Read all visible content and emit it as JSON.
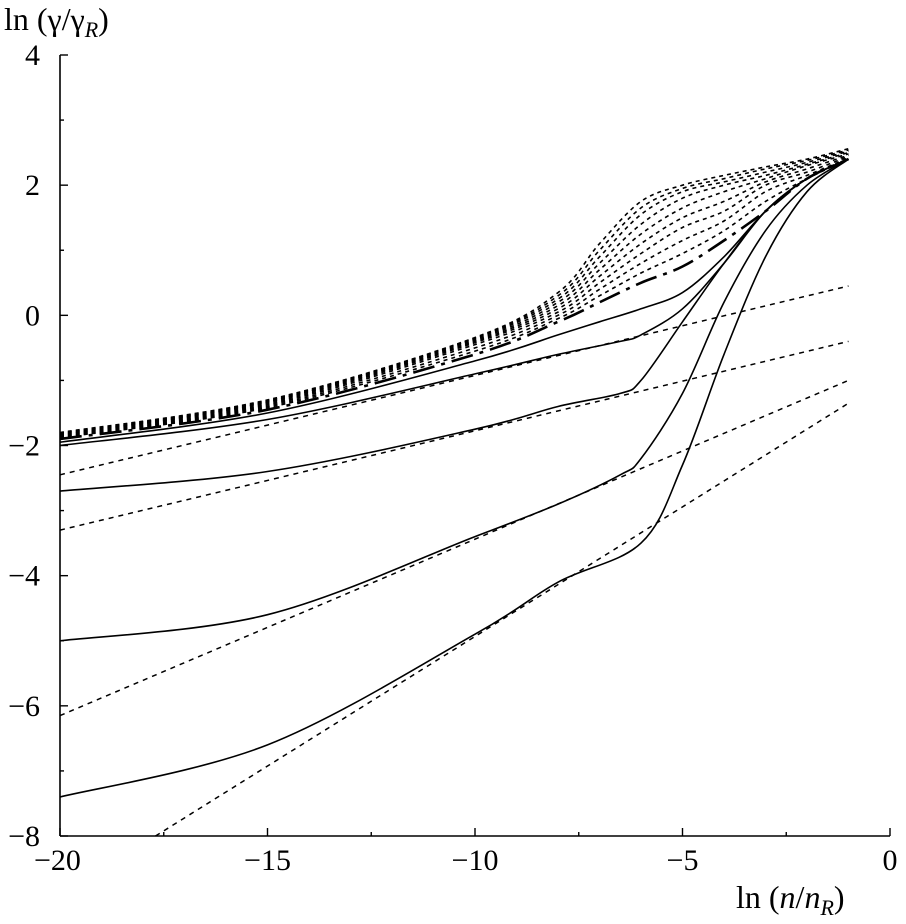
{
  "chart_data": {
    "type": "line",
    "xlabel": {
      "prefix": "ln (",
      "var1": "n",
      "sep": "/",
      "var2": "n",
      "sub": "R",
      "suffix": ")"
    },
    "ylabel": {
      "prefix": "ln (",
      "var1": "γ",
      "sep": "/",
      "var2": "γ",
      "sub": "R",
      "suffix": ")"
    },
    "xlim": [
      -20,
      0
    ],
    "ylim": [
      -8,
      4
    ],
    "x_ticks": [
      -20,
      -15,
      -10,
      -5,
      0
    ],
    "x_tick_labels": [
      "−20",
      "−15",
      "−10",
      "−5",
      "0"
    ],
    "y_ticks": [
      -8,
      -6,
      -4,
      -2,
      0,
      2,
      4
    ],
    "y_tick_labels": [
      "−8",
      "−6",
      "−4",
      "−2",
      "0",
      "2",
      "4"
    ],
    "grid": false,
    "legend": "none",
    "series": [
      {
        "style": "solid",
        "x": [
          -20,
          -15,
          -10,
          -8,
          -6,
          -5,
          -4,
          -3,
          -2,
          -1
        ],
        "y": [
          -7.4,
          -6.6,
          -4.9,
          -4.1,
          -3.5,
          -2.3,
          -0.6,
          0.9,
          1.9,
          2.4
        ]
      },
      {
        "style": "solid",
        "x": [
          -20,
          -15,
          -10,
          -8,
          -6.5,
          -6,
          -5,
          -4,
          -3,
          -2,
          -1
        ],
        "y": [
          -5.0,
          -4.6,
          -3.4,
          -2.9,
          -2.45,
          -2.2,
          -1.2,
          0.2,
          1.3,
          2.0,
          2.4
        ]
      },
      {
        "style": "solid",
        "x": [
          -20,
          -15,
          -10,
          -8,
          -6.5,
          -6,
          -5,
          -4,
          -3,
          -2,
          -1
        ],
        "y": [
          -2.7,
          -2.4,
          -1.75,
          -1.4,
          -1.2,
          -1.0,
          -0.1,
          0.8,
          1.6,
          2.1,
          2.4
        ]
      },
      {
        "style": "solid",
        "x": [
          -20,
          -15,
          -10,
          -8,
          -6.5,
          -6,
          -5,
          -4,
          -3,
          -2,
          -1
        ],
        "y": [
          -2.0,
          -1.6,
          -0.9,
          -0.6,
          -0.4,
          -0.3,
          0.1,
          0.8,
          1.6,
          2.1,
          2.4
        ]
      },
      {
        "style": "solid",
        "x": [
          -20,
          -15,
          -10,
          -8,
          -7,
          -6,
          -5,
          -4,
          -3,
          -2,
          -1
        ],
        "y": [
          -1.95,
          -1.5,
          -0.7,
          -0.3,
          -0.1,
          0.1,
          0.35,
          0.9,
          1.6,
          2.1,
          2.4
        ]
      },
      {
        "style": "dash-dot",
        "x": [
          -20,
          -15,
          -10,
          -8,
          -7,
          -6,
          -5,
          -4,
          -3,
          -2,
          -1
        ],
        "y": [
          -1.9,
          -1.45,
          -0.6,
          -0.1,
          0.2,
          0.5,
          0.75,
          1.15,
          1.6,
          2.1,
          2.4
        ]
      },
      {
        "style": "dotted",
        "x": [
          -20,
          -15,
          -10,
          -8,
          -7,
          -6,
          -5,
          -4,
          -3,
          -2,
          -1
        ],
        "y": [
          -1.88,
          -1.42,
          -0.55,
          -0.05,
          0.3,
          0.65,
          0.95,
          1.3,
          1.75,
          2.1,
          2.4
        ]
      },
      {
        "style": "dotted",
        "x": [
          -20,
          -15,
          -10,
          -8,
          -7,
          -6,
          -5,
          -4,
          -3,
          -2,
          -1
        ],
        "y": [
          -1.87,
          -1.4,
          -0.5,
          0.0,
          0.4,
          0.8,
          1.15,
          1.45,
          1.9,
          2.15,
          2.42
        ]
      },
      {
        "style": "dotted",
        "x": [
          -20,
          -15,
          -10,
          -8,
          -7,
          -6,
          -5,
          -4,
          -3,
          -2,
          -1
        ],
        "y": [
          -1.86,
          -1.38,
          -0.45,
          0.05,
          0.5,
          0.95,
          1.35,
          1.6,
          2.0,
          2.2,
          2.44
        ]
      },
      {
        "style": "dotted",
        "x": [
          -20,
          -15,
          -10,
          -8,
          -7,
          -6,
          -5,
          -4,
          -3,
          -2,
          -1
        ],
        "y": [
          -1.85,
          -1.36,
          -0.42,
          0.1,
          0.6,
          1.1,
          1.5,
          1.75,
          2.05,
          2.25,
          2.46
        ]
      },
      {
        "style": "dotted",
        "x": [
          -20,
          -15,
          -10,
          -8,
          -7,
          -6,
          -5,
          -4,
          -3,
          -2,
          -1
        ],
        "y": [
          -1.84,
          -1.34,
          -0.4,
          0.15,
          0.7,
          1.25,
          1.65,
          1.9,
          2.1,
          2.3,
          2.48
        ]
      },
      {
        "style": "dotted",
        "x": [
          -20,
          -15,
          -10,
          -8,
          -7,
          -6,
          -5,
          -4,
          -3,
          -2,
          -1
        ],
        "y": [
          -1.83,
          -1.33,
          -0.38,
          0.2,
          0.8,
          1.4,
          1.8,
          2.0,
          2.15,
          2.32,
          2.5
        ]
      },
      {
        "style": "dotted",
        "x": [
          -20,
          -15,
          -10,
          -8,
          -7,
          -6,
          -5,
          -4,
          -3,
          -2,
          -1
        ],
        "y": [
          -1.82,
          -1.32,
          -0.36,
          0.25,
          0.9,
          1.55,
          1.9,
          2.05,
          2.2,
          2.35,
          2.52
        ]
      },
      {
        "style": "dotted",
        "x": [
          -20,
          -15,
          -10,
          -8,
          -7,
          -6,
          -5,
          -4,
          -3,
          -2,
          -1
        ],
        "y": [
          -1.81,
          -1.31,
          -0.35,
          0.3,
          1.0,
          1.65,
          1.95,
          2.1,
          2.25,
          2.38,
          2.54
        ]
      },
      {
        "style": "dotted",
        "x": [
          -20,
          -15,
          -10,
          -8,
          -7,
          -6,
          -5,
          -4,
          -3,
          -2,
          -1
        ],
        "y": [
          -1.8,
          -1.3,
          -0.34,
          0.35,
          1.1,
          1.75,
          2.0,
          2.15,
          2.28,
          2.4,
          2.56
        ]
      },
      {
        "style": "asymptote",
        "x": [
          -17.7,
          -1
        ],
        "y": [
          -8.0,
          -1.35
        ]
      },
      {
        "style": "asymptote",
        "x": [
          -20,
          -1
        ],
        "y": [
          -6.15,
          -1.0
        ]
      },
      {
        "style": "asymptote",
        "x": [
          -20,
          -1
        ],
        "y": [
          -3.3,
          -0.4
        ]
      },
      {
        "style": "asymptote",
        "x": [
          -20,
          -1
        ],
        "y": [
          -2.45,
          0.45
        ]
      }
    ]
  }
}
